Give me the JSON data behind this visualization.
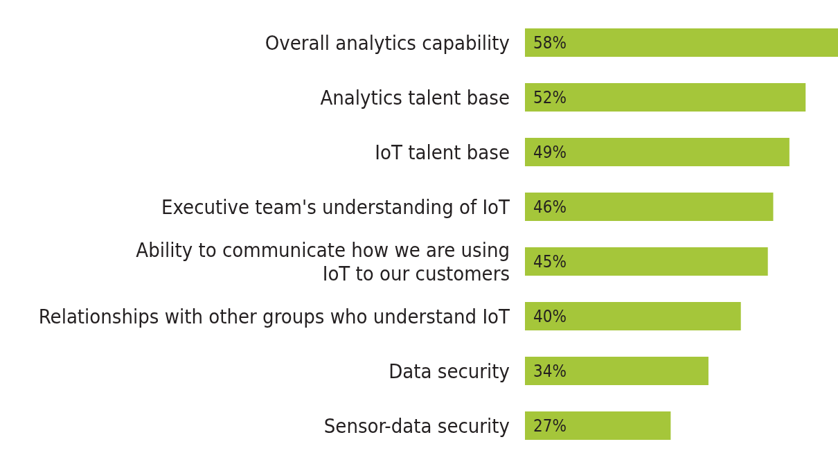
{
  "chart_data": {
    "type": "bar",
    "orientation": "horizontal",
    "categories": [
      "Overall analytics capability",
      "Analytics talent base",
      "IoT talent base",
      "Executive team's understanding of IoT",
      "Ability to communicate how we are using\nIoT to our customers",
      "Relationships with other groups who understand IoT",
      "Data security",
      "Sensor-data security"
    ],
    "values": [
      58,
      52,
      49,
      46,
      45,
      40,
      34,
      27
    ],
    "value_labels": [
      "58%",
      "52%",
      "49%",
      "46%",
      "45%",
      "40%",
      "34%",
      "27%"
    ],
    "color": "#a5c63a",
    "grid": false,
    "legend": false
  }
}
